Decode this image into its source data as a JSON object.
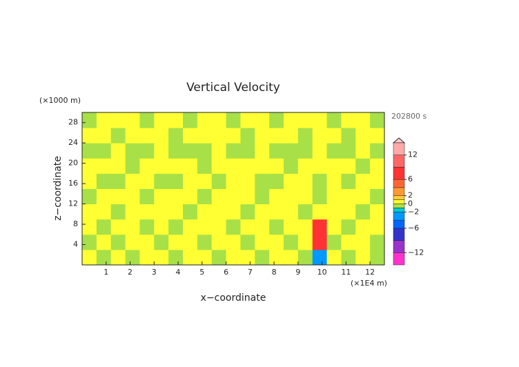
{
  "chart_data": {
    "type": "heatmap",
    "title": "Vertical Velocity",
    "time_label": "202800 s",
    "x_label": "x−coordinate",
    "y_label": "z−coordinate",
    "x_unit": "(×1E4 m)",
    "y_unit": "(×1000 m)",
    "xlim": [
      0,
      12.6
    ],
    "ylim": [
      0,
      30
    ],
    "xticks": [
      1,
      2,
      3,
      4,
      5,
      6,
      7,
      8,
      9,
      10,
      11,
      12
    ],
    "yticks": [
      4,
      8,
      12,
      16,
      20,
      24,
      28
    ],
    "levels": [
      -15,
      -12,
      -9,
      -6,
      -4,
      -2,
      -1,
      0,
      1,
      2,
      4,
      6,
      9,
      12,
      15
    ],
    "colors": [
      "#ff33cc",
      "#9933cc",
      "#3333cc",
      "#0066ff",
      "#0099ff",
      "#00cccc",
      "#a8e048",
      "#ffff33",
      "#ffcc33",
      "#ff9933",
      "#ff6633",
      "#ff3333",
      "#ff6666",
      "#ffaaaa"
    ],
    "colorbar_ticks": [
      12,
      6,
      2,
      0,
      {
        "value": -2,
        "label": "−2"
      },
      {
        "value": -6,
        "label": "−6"
      },
      {
        "value": -12,
        "label": "−12"
      }
    ],
    "z": [
      [
        0.5,
        -0.5,
        0.5,
        -0.5,
        0.5,
        0.5,
        -0.5,
        0.5,
        0.5,
        -0.5,
        0.5,
        0.5,
        -0.5,
        0.5,
        0.5,
        -0.5,
        -3,
        0.5,
        -0.5,
        0.5,
        -0.5
      ],
      [
        -0.5,
        0.5,
        -0.5,
        0.5,
        0.5,
        -0.5,
        0.5,
        0.5,
        -0.5,
        0.5,
        0.5,
        -0.5,
        0.5,
        0.5,
        -0.5,
        0.5,
        7,
        -0.5,
        0.5,
        0.5,
        -0.5
      ],
      [
        0.5,
        -0.5,
        0.5,
        0.5,
        -0.5,
        0.5,
        -0.5,
        0.5,
        0.5,
        0.5,
        -0.5,
        0.5,
        0.5,
        -0.5,
        0.5,
        0.5,
        8,
        0.5,
        -0.5,
        0.5,
        0.5
      ],
      [
        0.5,
        0.5,
        -0.5,
        0.5,
        0.5,
        0.5,
        0.5,
        -0.5,
        0.5,
        0.5,
        0.5,
        -0.5,
        0.5,
        0.5,
        0.5,
        -0.5,
        0.5,
        0.5,
        0.5,
        -0.5,
        0.5
      ],
      [
        -0.5,
        0.5,
        0.5,
        0.5,
        -0.5,
        0.5,
        0.5,
        0.5,
        -0.5,
        0.5,
        0.5,
        0.5,
        -0.5,
        0.5,
        0.5,
        0.5,
        -0.5,
        0.5,
        0.5,
        0.5,
        -0.5
      ],
      [
        0.5,
        -0.5,
        -0.5,
        0.5,
        0.5,
        -0.5,
        -0.5,
        0.5,
        0.5,
        -0.5,
        0.5,
        0.5,
        -0.5,
        -0.5,
        0.5,
        0.5,
        -0.5,
        0.5,
        -0.5,
        0.5,
        0.5
      ],
      [
        0.5,
        0.5,
        0.5,
        -0.5,
        0.5,
        0.5,
        0.5,
        0.5,
        -0.5,
        0.5,
        0.5,
        0.5,
        0.5,
        0.5,
        -0.5,
        0.5,
        0.5,
        0.5,
        0.5,
        -0.5,
        0.5
      ],
      [
        -0.5,
        -0.5,
        0.5,
        -0.5,
        -0.5,
        0.5,
        -0.5,
        -0.5,
        -0.5,
        0.5,
        -0.5,
        -0.5,
        0.5,
        -0.5,
        -0.5,
        -0.5,
        0.5,
        -0.5,
        -0.5,
        0.5,
        -0.5
      ],
      [
        0.5,
        0.5,
        -0.5,
        0.5,
        0.5,
        0.5,
        -0.5,
        0.5,
        0.5,
        0.5,
        0.5,
        -0.5,
        0.5,
        0.5,
        0.5,
        -0.5,
        0.5,
        0.5,
        -0.5,
        0.5,
        0.5
      ],
      [
        -0.5,
        0.5,
        0.5,
        0.5,
        -0.5,
        0.5,
        0.5,
        -0.5,
        0.5,
        0.5,
        -0.5,
        0.5,
        0.5,
        -0.5,
        0.5,
        0.5,
        0.5,
        -0.5,
        0.5,
        0.5,
        -0.5
      ]
    ]
  }
}
